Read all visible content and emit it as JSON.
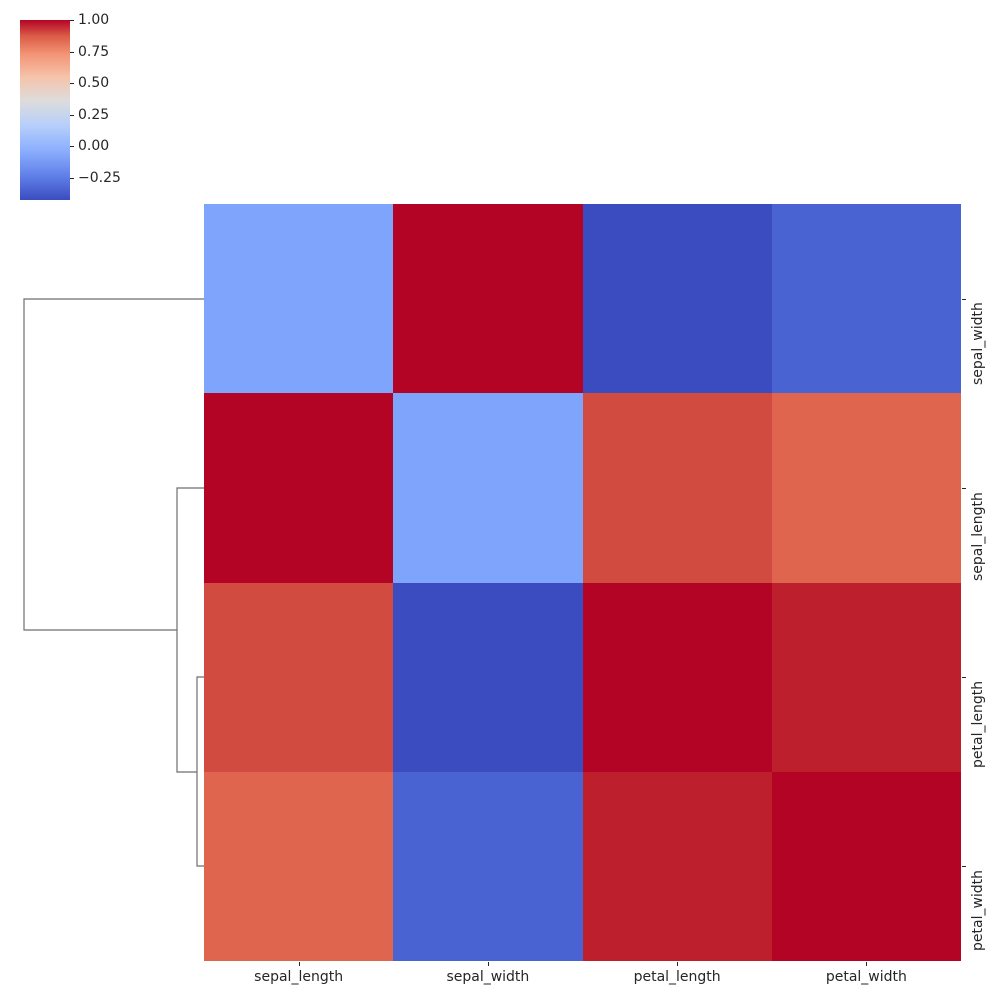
{
  "chart_data": {
    "type": "heatmap",
    "subtype": "clustermap",
    "title": "",
    "row_labels": [
      "sepal_width",
      "sepal_length",
      "petal_length",
      "petal_width"
    ],
    "col_labels": [
      "sepal_length",
      "sepal_width",
      "petal_length",
      "petal_width"
    ],
    "values": [
      [
        -0.118,
        1.0,
        -0.428,
        -0.366
      ],
      [
        1.0,
        -0.118,
        0.872,
        0.818
      ],
      [
        0.872,
        -0.428,
        1.0,
        0.963
      ],
      [
        0.818,
        -0.366,
        0.963,
        1.0
      ]
    ],
    "colormap": "coolwarm",
    "vmin": -0.428,
    "vmax": 1.0,
    "colorbar": {
      "ticks": [
        1.0,
        0.75,
        0.5,
        0.25,
        0.0,
        -0.25
      ],
      "tick_labels": [
        "1.00",
        "0.75",
        "0.50",
        "0.25",
        "0.00",
        "−0.25"
      ]
    },
    "cell_colors": [
      [
        "#7fa4fb",
        "#b40426",
        "#3b4cc0",
        "#4a63d3"
      ],
      [
        "#b40426",
        "#7fa4fb",
        "#d24b40",
        "#e0654f"
      ],
      [
        "#d24b40",
        "#3b4cc0",
        "#b40426",
        "#bd1f2d"
      ],
      [
        "#e0654f",
        "#4a63d3",
        "#bd1f2d",
        "#b40426"
      ]
    ],
    "row_dendrogram": true,
    "col_dendrogram": false
  },
  "axes": {
    "x_labels": [
      "sepal_length",
      "sepal_width",
      "petal_length",
      "petal_width"
    ],
    "y_labels": [
      "sepal_width",
      "sepal_length",
      "petal_length",
      "petal_width"
    ]
  }
}
